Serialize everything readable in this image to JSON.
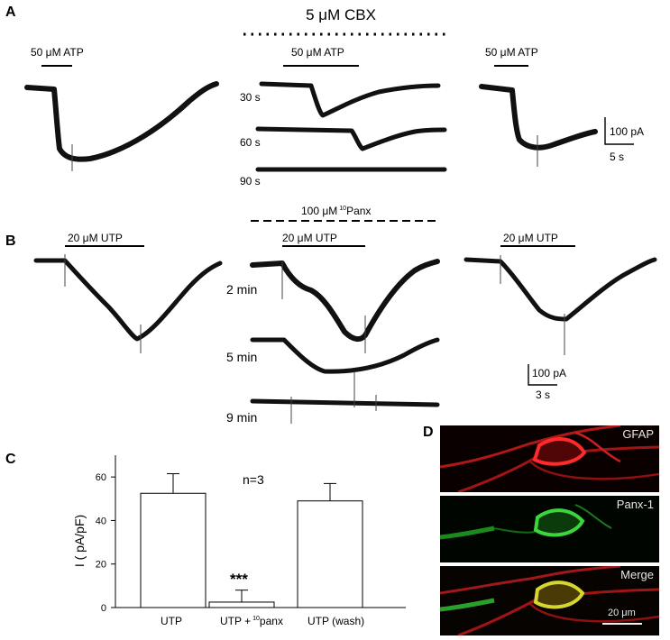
{
  "panels": {
    "A": {
      "letter": "A",
      "treatment_label": "5 μM CBX",
      "stim_left": "50 μM ATP",
      "stim_mid": "50 μM ATP",
      "stim_right": "50 μM ATP",
      "time_labels": [
        "30 s",
        "60 s",
        "90 s"
      ],
      "scale_current": "100 pA",
      "scale_time": "5 s"
    },
    "B": {
      "letter": "B",
      "treatment_label": "100 μM",
      "treatment_sup": "10",
      "treatment_suffix": "Panx",
      "stim_left": "20 μM UTP",
      "stim_mid": "20 μM UTP",
      "stim_right": "20 μM UTP",
      "time_labels": [
        "2 min",
        "5 min",
        "9 min"
      ],
      "scale_current": "100 pA",
      "scale_time": "3 s"
    },
    "C": {
      "letter": "C",
      "n_label": "n=3",
      "significance": "***",
      "ylabel": "I ( pA/pF)",
      "xtick_1": "UTP",
      "xtick_2_prefix": "UTP +",
      "xtick_2_sup": "10",
      "xtick_2_suffix": "panx",
      "xtick_3": "UTP (wash)"
    },
    "D": {
      "letter": "D",
      "channel_labels": [
        "GFAP",
        "Panx-1",
        "Merge"
      ],
      "scale_bar_label": "20 μm"
    }
  },
  "chart_data": {
    "type": "bar",
    "categories": [
      "UTP",
      "UTP +10panx",
      "UTP (wash)"
    ],
    "values": [
      52.5,
      2.5,
      49
    ],
    "errors": [
      9,
      5.5,
      8
    ],
    "ylabel": "I ( pA/pF)",
    "ylim": [
      0,
      70
    ],
    "yticks": [
      0,
      20,
      40,
      60
    ],
    "bar_color": "#ffffff",
    "edge_color": "#000000"
  }
}
